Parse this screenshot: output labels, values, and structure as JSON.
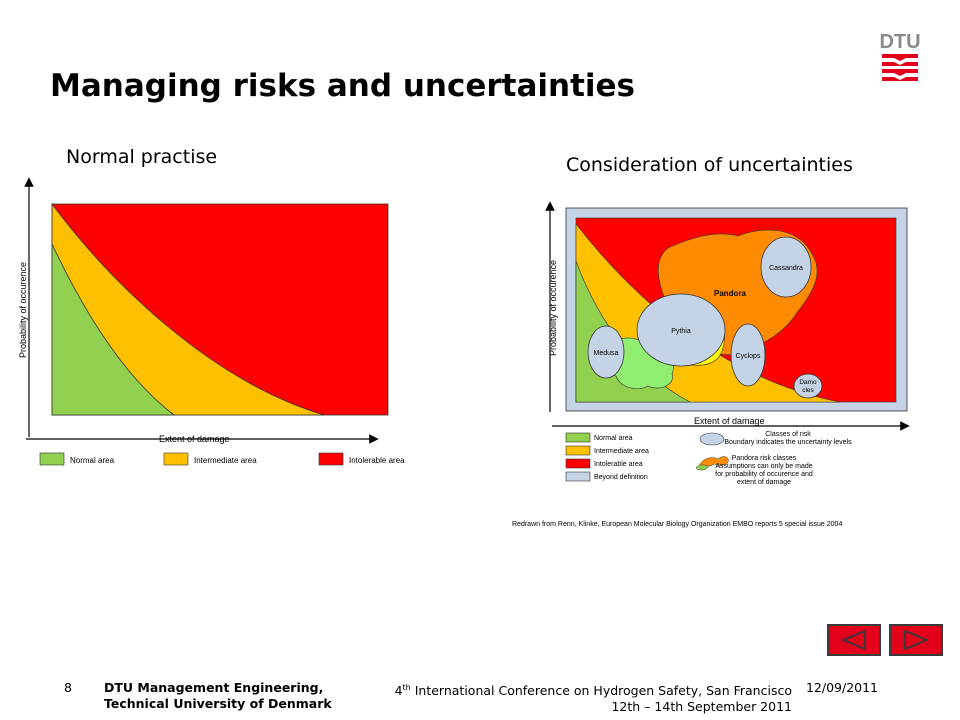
{
  "logo": {
    "text": "DTU",
    "icon": "dtu-logo-icon"
  },
  "slide": {
    "title": "Managing risks and uncertainties"
  },
  "left": {
    "heading": "Normal practise",
    "ylabel": "Probability of occurence",
    "xlabel": "Extent of damage",
    "legend": [
      "Normal area",
      "Intermediate area",
      "Intolerable area"
    ]
  },
  "right": {
    "heading": "Consideration of uncertainties",
    "ylabel": "Probability of occurence",
    "xlabel": "Extent of damage",
    "classes": {
      "cassandra": "Cassandra",
      "pandora": "Pandora",
      "pythia": "Pythia",
      "medusa": "Medusa",
      "cyclops": "Cyclops",
      "damo1": "Damo",
      "damo2": "cles"
    },
    "legend": {
      "normal": "Normal area",
      "intermediate": "Intermediate area",
      "intolerable": "Intolerable area",
      "beyond": "Beyond definition",
      "classes_line1": "Classes of risk",
      "classes_line2": "Boundary indicates the uncertainty levels",
      "pandora_line1": "Pandora risk classes",
      "pandora_line2": "Assumptions can only be made",
      "pandora_line3": "for probability of occurence and",
      "pandora_line4": "extent of damage"
    },
    "source": "Redrawn from Renn, Klinke, European Molecular Biology Organization EMBO reports 5 special issue 2004"
  },
  "colors": {
    "normal": "#92d050",
    "intermediate": "#ffc000",
    "intolerable": "#ff0000",
    "beyond": "#c5d3e6",
    "pandora": "#ff8c00",
    "accent": "#e2001a"
  },
  "footer": {
    "page": "8",
    "org_line1": "DTU Management Engineering,",
    "org_line2": "Technical University of Denmark",
    "conf_ordinal": "4",
    "conf_suffix": "th",
    "conf_line1": " International Conference on Hydrogen Safety, San Francisco",
    "conf_line2": "12th – 14th September 2011",
    "date": "12/09/2011"
  },
  "nav": {
    "prev_icon": "triangle-left-icon",
    "next_icon": "triangle-right-icon"
  }
}
